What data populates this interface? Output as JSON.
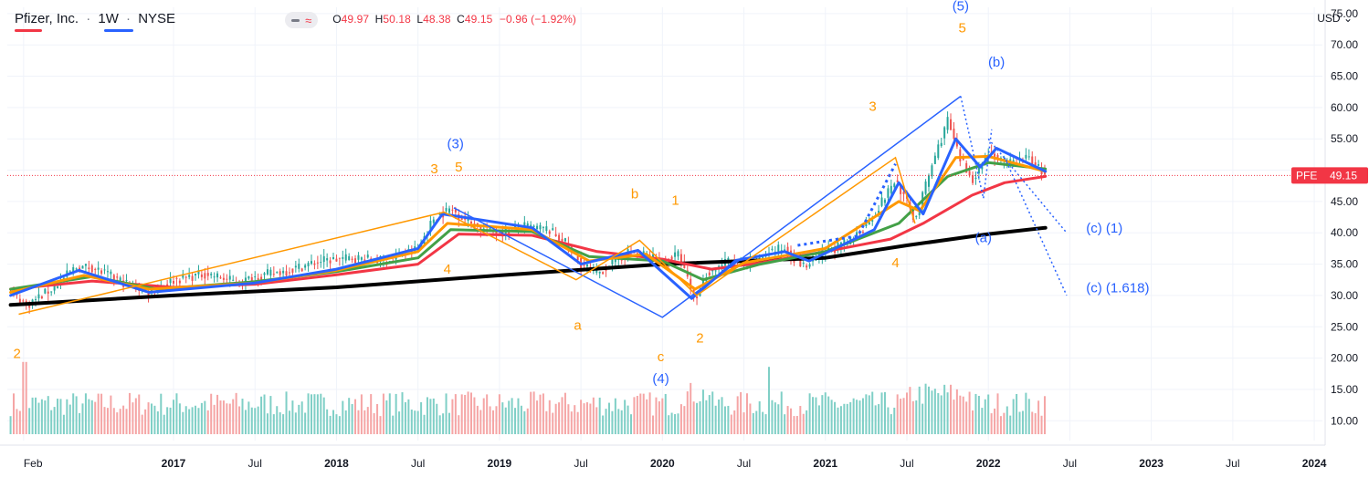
{
  "legend": {
    "symbol": "Pfizer, Inc.",
    "interval": "1W",
    "exchange": "NYSE",
    "open_label": "O",
    "open": "49.97",
    "high_label": "H",
    "high": "50.18",
    "low_label": "L",
    "low": "48.38",
    "close_label": "C",
    "close": "49.15",
    "change": "−0.96 (−1.92%)"
  },
  "currency": "USD",
  "price_tag": {
    "symbol": "PFE",
    "value": "49.15",
    "price": 49.15
  },
  "colors": {
    "up": "#26a69a",
    "down": "#ef5350",
    "up_volume": "#7fcfc6",
    "down_volume": "#f5a5a5",
    "wave_blue": "#2962ff",
    "wave_orange": "#ff9800",
    "ma_black": "#000000",
    "ma_red": "#f23645",
    "ma_green": "#43a047",
    "ma_orange": "#ff9800",
    "ma_blue": "#2962ff",
    "current_price": "#f23645"
  },
  "chart_data": {
    "type": "candlestick",
    "title": "Pfizer, Inc. · 1W · NYSE",
    "ylim": [
      8,
      76
    ],
    "y_ticks": [
      "10.00",
      "15.00",
      "20.00",
      "25.00",
      "30.00",
      "35.00",
      "40.00",
      "45.00",
      "50.00",
      "55.00",
      "60.00",
      "65.00",
      "70.00",
      "75.00"
    ],
    "x_ticks": [
      {
        "label": "Feb",
        "t": 2016.08,
        "year": false
      },
      {
        "label": "2017",
        "t": 2017.0,
        "year": true
      },
      {
        "label": "Jul",
        "t": 2017.5,
        "year": false
      },
      {
        "label": "2018",
        "t": 2018.0,
        "year": true
      },
      {
        "label": "Jul",
        "t": 2018.5,
        "year": false
      },
      {
        "label": "2019",
        "t": 2019.0,
        "year": true
      },
      {
        "label": "Jul",
        "t": 2019.5,
        "year": false
      },
      {
        "label": "2020",
        "t": 2020.0,
        "year": true
      },
      {
        "label": "Jul",
        "t": 2020.5,
        "year": false
      },
      {
        "label": "2021",
        "t": 2021.0,
        "year": true
      },
      {
        "label": "Jul",
        "t": 2021.5,
        "year": false
      },
      {
        "label": "2022",
        "t": 2022.0,
        "year": true
      },
      {
        "label": "Jul",
        "t": 2022.5,
        "year": false
      },
      {
        "label": "2023",
        "t": 2023.0,
        "year": true
      },
      {
        "label": "Jul",
        "t": 2023.5,
        "year": false
      },
      {
        "label": "2024",
        "t": 2024.0,
        "year": true
      }
    ],
    "x_range": [
      2015.98,
      2024.05
    ],
    "last_close": 49.15,
    "price_path": [
      [
        2016.0,
        30.5
      ],
      [
        2016.1,
        28.5
      ],
      [
        2016.25,
        31.0
      ],
      [
        2016.4,
        34.5
      ],
      [
        2016.5,
        34.5
      ],
      [
        2016.7,
        32.0
      ],
      [
        2016.85,
        30.5
      ],
      [
        2017.0,
        32.5
      ],
      [
        2017.2,
        33.5
      ],
      [
        2017.4,
        32.0
      ],
      [
        2017.5,
        33.0
      ],
      [
        2017.7,
        34.0
      ],
      [
        2017.9,
        35.5
      ],
      [
        2018.1,
        36.0
      ],
      [
        2018.3,
        35.5
      ],
      [
        2018.5,
        37.5
      ],
      [
        2018.6,
        42.5
      ],
      [
        2018.7,
        43.8
      ],
      [
        2018.8,
        42.0
      ],
      [
        2018.9,
        40.5
      ],
      [
        2019.0,
        40.0
      ],
      [
        2019.15,
        41.0
      ],
      [
        2019.3,
        40.5
      ],
      [
        2019.4,
        38.5
      ],
      [
        2019.5,
        35.0
      ],
      [
        2019.6,
        33.5
      ],
      [
        2019.8,
        37.0
      ],
      [
        2019.9,
        36.5
      ],
      [
        2020.0,
        35.5
      ],
      [
        2020.1,
        36.5
      ],
      [
        2020.2,
        29.0
      ],
      [
        2020.27,
        33.5
      ],
      [
        2020.4,
        35.5
      ],
      [
        2020.55,
        35.0
      ],
      [
        2020.65,
        37.0
      ],
      [
        2020.75,
        37.5
      ],
      [
        2020.87,
        34.5
      ],
      [
        2021.0,
        37.0
      ],
      [
        2021.15,
        38.5
      ],
      [
        2021.3,
        43.0
      ],
      [
        2021.43,
        48.5
      ],
      [
        2021.55,
        42.0
      ],
      [
        2021.65,
        50.5
      ],
      [
        2021.75,
        58.0
      ],
      [
        2021.82,
        52.0
      ],
      [
        2021.9,
        48.5
      ],
      [
        2022.0,
        53.0
      ],
      [
        2022.1,
        51.0
      ],
      [
        2022.25,
        52.0
      ],
      [
        2022.35,
        49.15
      ]
    ],
    "moving_averages": [
      {
        "color": "#000000",
        "width": 4,
        "points": [
          [
            2016.0,
            28.5
          ],
          [
            2017.0,
            30.0
          ],
          [
            2018.0,
            31.3
          ],
          [
            2019.0,
            33.2
          ],
          [
            2020.0,
            35.0
          ],
          [
            2021.0,
            36.0
          ],
          [
            2021.5,
            38.0
          ],
          [
            2022.0,
            39.8
          ],
          [
            2022.35,
            40.8
          ]
        ]
      },
      {
        "color": "#f23645",
        "width": 3,
        "points": [
          [
            2016.0,
            31.0
          ],
          [
            2016.5,
            32.3
          ],
          [
            2017.0,
            31.3
          ],
          [
            2017.5,
            31.8
          ],
          [
            2018.0,
            33.3
          ],
          [
            2018.5,
            35.0
          ],
          [
            2018.75,
            39.8
          ],
          [
            2019.2,
            39.6
          ],
          [
            2019.6,
            37.0
          ],
          [
            2020.0,
            35.8
          ],
          [
            2020.3,
            34.2
          ],
          [
            2020.6,
            35.2
          ],
          [
            2021.0,
            37.0
          ],
          [
            2021.4,
            39.0
          ],
          [
            2021.6,
            41.5
          ],
          [
            2021.9,
            46.0
          ],
          [
            2022.1,
            48.0
          ],
          [
            2022.35,
            49.0
          ]
        ]
      },
      {
        "color": "#43a047",
        "width": 3,
        "points": [
          [
            2016.0,
            31.0
          ],
          [
            2016.5,
            33.0
          ],
          [
            2016.9,
            31.0
          ],
          [
            2017.5,
            32.2
          ],
          [
            2018.0,
            33.8
          ],
          [
            2018.5,
            36.0
          ],
          [
            2018.7,
            40.5
          ],
          [
            2019.2,
            40.2
          ],
          [
            2019.55,
            36.2
          ],
          [
            2020.0,
            35.5
          ],
          [
            2020.25,
            32.5
          ],
          [
            2020.6,
            35.0
          ],
          [
            2021.0,
            37.0
          ],
          [
            2021.45,
            41.5
          ],
          [
            2021.75,
            49.0
          ],
          [
            2022.0,
            51.2
          ],
          [
            2022.35,
            50.2
          ]
        ]
      },
      {
        "color": "#ff9800",
        "width": 3,
        "points": [
          [
            2016.0,
            30.5
          ],
          [
            2016.45,
            33.2
          ],
          [
            2016.85,
            31.0
          ],
          [
            2017.5,
            32.0
          ],
          [
            2018.0,
            34.0
          ],
          [
            2018.5,
            37.0
          ],
          [
            2018.68,
            41.5
          ],
          [
            2019.2,
            40.5
          ],
          [
            2019.55,
            35.5
          ],
          [
            2019.9,
            36.6
          ],
          [
            2020.2,
            31.0
          ],
          [
            2020.5,
            35.2
          ],
          [
            2021.0,
            37.5
          ],
          [
            2021.45,
            45.0
          ],
          [
            2021.58,
            43.5
          ],
          [
            2021.8,
            52.0
          ],
          [
            2022.0,
            52.2
          ],
          [
            2022.35,
            49.8
          ]
        ]
      },
      {
        "color": "#2962ff",
        "width": 3,
        "points": [
          [
            2016.0,
            30.0
          ],
          [
            2016.42,
            34.0
          ],
          [
            2016.85,
            30.5
          ],
          [
            2017.5,
            32.0
          ],
          [
            2018.0,
            34.2
          ],
          [
            2018.5,
            37.5
          ],
          [
            2018.65,
            43.0
          ],
          [
            2019.2,
            40.8
          ],
          [
            2019.5,
            35.0
          ],
          [
            2019.85,
            37.2
          ],
          [
            2020.18,
            29.5
          ],
          [
            2020.45,
            35.6
          ],
          [
            2020.75,
            37.0
          ],
          [
            2020.9,
            35.5
          ],
          [
            2021.3,
            40.5
          ],
          [
            2021.45,
            48.0
          ],
          [
            2021.6,
            43.0
          ],
          [
            2021.8,
            55.0
          ],
          [
            2021.95,
            50.5
          ],
          [
            2022.05,
            53.5
          ],
          [
            2022.35,
            49.8
          ]
        ]
      }
    ],
    "wave_lines": [
      {
        "color": "#2962ff",
        "dash": false,
        "points": [
          [
            2018.72,
            44.0
          ],
          [
            2020.0,
            26.5
          ],
          [
            2021.83,
            61.8
          ]
        ]
      },
      {
        "color": "#ff9800",
        "dash": false,
        "points": [
          [
            2016.05,
            27.0
          ],
          [
            2018.66,
            43.3
          ],
          [
            2019.47,
            32.5
          ],
          [
            2019.86,
            38.8
          ],
          [
            2020.21,
            30.0
          ],
          [
            2021.43,
            52.0
          ],
          [
            2021.55,
            41.5
          ]
        ]
      },
      {
        "color": "#2962ff",
        "dash": true,
        "points": [
          [
            2021.83,
            61.8
          ],
          [
            2021.97,
            45.5
          ],
          [
            2022.02,
            56.5
          ]
        ]
      },
      {
        "color": "#2962ff",
        "dash": true,
        "dots": true,
        "points": [
          [
            2020.83,
            38.0
          ],
          [
            2021.2,
            39.5
          ],
          [
            2021.43,
            51.0
          ]
        ]
      },
      {
        "color": "#2962ff",
        "dash": true,
        "points": [
          [
            2022.0,
            55.0
          ],
          [
            2022.48,
            40.0
          ]
        ]
      },
      {
        "color": "#2962ff",
        "dash": true,
        "points": [
          [
            2022.1,
            52.0
          ],
          [
            2022.48,
            30.0
          ]
        ]
      }
    ],
    "volume_ylim": [
      0,
      100
    ],
    "annotations": [
      {
        "text": "2",
        "t": 2016.04,
        "y": 20.0,
        "color": "#ff9800"
      },
      {
        "text": "4",
        "t": 2018.68,
        "y": 33.5,
        "color": "#ff9800"
      },
      {
        "text": "3",
        "t": 2018.6,
        "y": 49.5,
        "color": "#ff9800"
      },
      {
        "text": "5",
        "t": 2018.75,
        "y": 49.8,
        "color": "#ff9800"
      },
      {
        "text": "(3)",
        "t": 2018.73,
        "y": 53.5,
        "color": "#2962ff"
      },
      {
        "text": "b",
        "t": 2019.83,
        "y": 45.5,
        "color": "#ff9800"
      },
      {
        "text": "1",
        "t": 2020.08,
        "y": 44.5,
        "color": "#ff9800"
      },
      {
        "text": "a",
        "t": 2019.48,
        "y": 24.5,
        "color": "#ff9800"
      },
      {
        "text": "2",
        "t": 2020.23,
        "y": 22.5,
        "color": "#ff9800"
      },
      {
        "text": "c",
        "t": 2019.99,
        "y": 19.5,
        "color": "#ff9800"
      },
      {
        "text": "(4)",
        "t": 2019.99,
        "y": 16.0,
        "color": "#2962ff"
      },
      {
        "text": "3",
        "t": 2021.29,
        "y": 59.5,
        "color": "#ff9800"
      },
      {
        "text": "4",
        "t": 2021.43,
        "y": 34.5,
        "color": "#ff9800"
      },
      {
        "text": "5",
        "t": 2021.84,
        "y": 72.0,
        "color": "#ff9800"
      },
      {
        "text": "(5)",
        "t": 2021.83,
        "y": 75.5,
        "color": "#2962ff"
      },
      {
        "text": "(b)",
        "t": 2022.05,
        "y": 66.5,
        "color": "#2962ff"
      },
      {
        "text": "(a)",
        "t": 2021.97,
        "y": 38.5,
        "color": "#2962ff"
      },
      {
        "text": "(c) (1)",
        "t": 2022.6,
        "y": 40.0,
        "color": "#2962ff"
      },
      {
        "text": "(c) (1.618)",
        "t": 2022.6,
        "y": 30.5,
        "color": "#2962ff"
      }
    ]
  }
}
